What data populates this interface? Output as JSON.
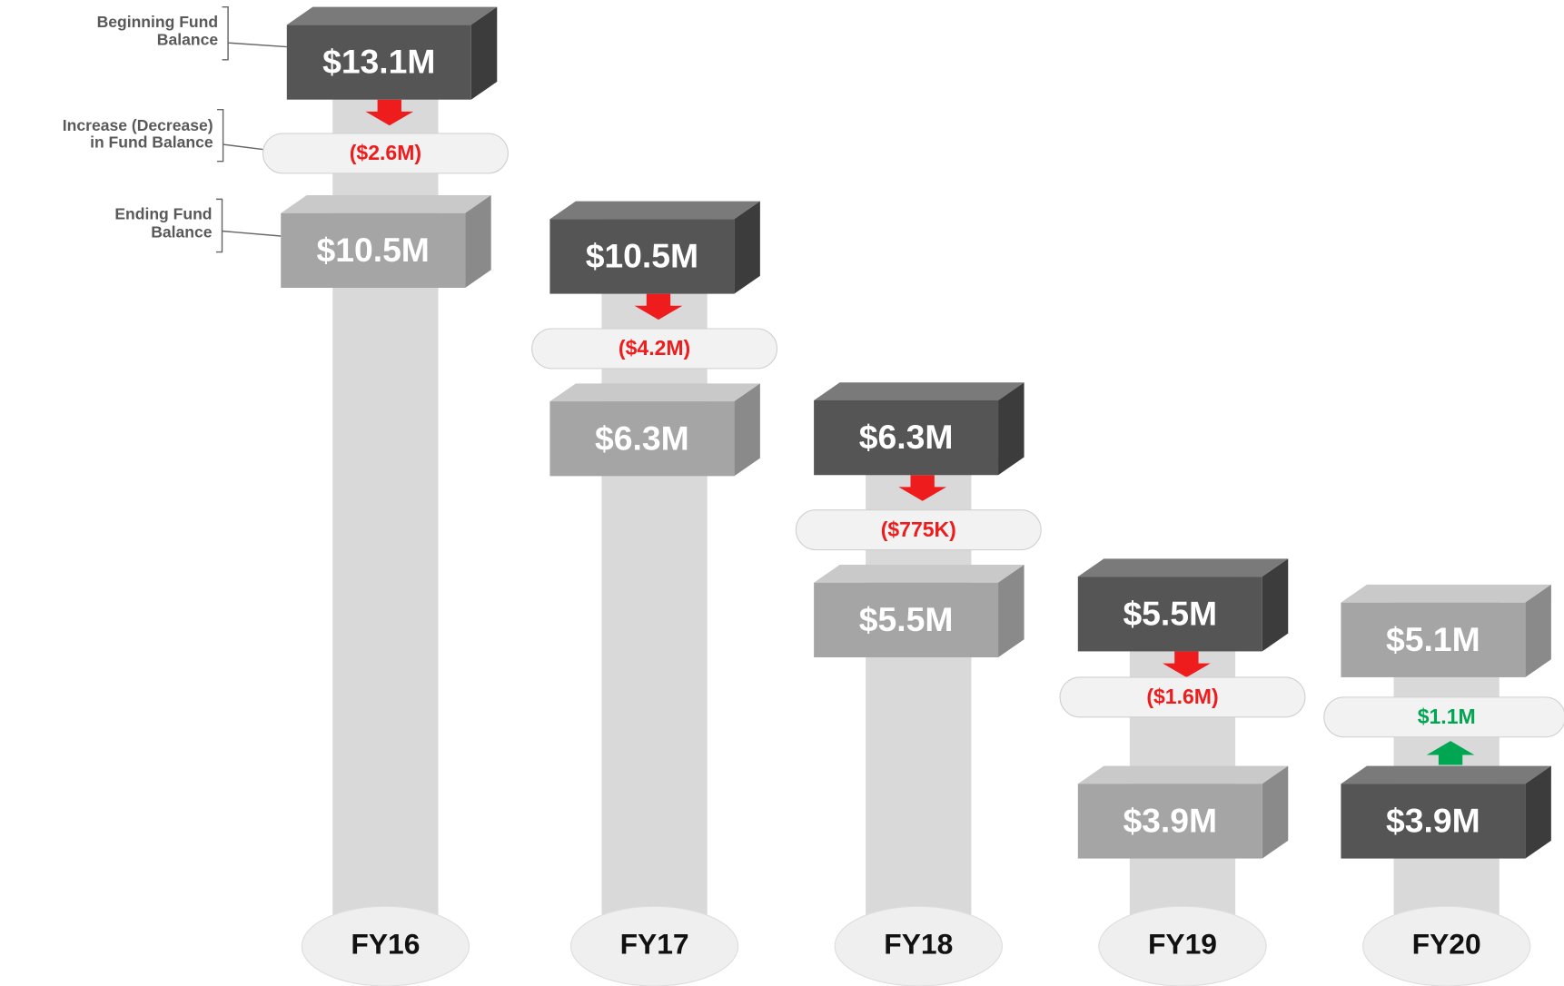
{
  "legend": {
    "beginning": [
      "Beginning Fund",
      "Balance"
    ],
    "change": [
      "Increase (Decrease)",
      "in Fund Balance"
    ],
    "ending": [
      "Ending Fund",
      "Balance"
    ]
  },
  "years": [
    {
      "label": "FY16",
      "beginning": "$13.1M",
      "change": "($2.6M)",
      "ending": "$10.5M",
      "color": "#ee1c1c"
    },
    {
      "label": "FY17",
      "beginning": "$10.5M",
      "change": "($4.2M)",
      "ending": "$6.3M",
      "color": "#ee1c1c"
    },
    {
      "label": "FY18",
      "beginning": "$6.3M",
      "change": "($775K)",
      "ending": "$5.5M",
      "color": "#ee1c1c"
    },
    {
      "label": "FY19",
      "beginning": "$5.5M",
      "change": "($1.6M)",
      "ending": "$3.9M",
      "color": "#ee1c1c"
    },
    {
      "label": "FY20",
      "beginning": "$3.9M",
      "change": "$1.1M",
      "ending": "$5.1M",
      "color": "#00a651"
    }
  ]
}
